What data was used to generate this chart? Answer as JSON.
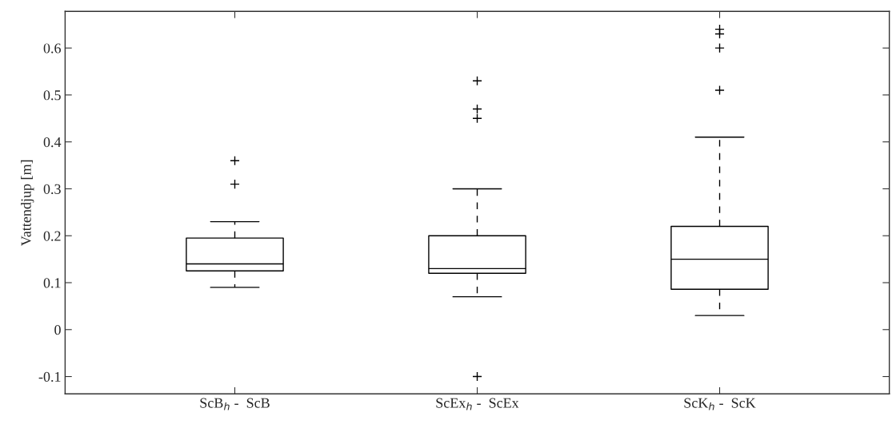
{
  "chart_data": {
    "type": "box",
    "ylabel": "Vattendjup [m]",
    "categories": [
      "ScB$_{h}$ -  ScB",
      "ScEx$_{h}$ -  ScEx",
      "ScK$_{h}$ -  ScK"
    ],
    "boxes": [
      {
        "low": 0.09,
        "q1": 0.125,
        "median": 0.14,
        "q3": 0.195,
        "high": 0.23,
        "outliers": [
          0.31,
          0.36
        ]
      },
      {
        "low": 0.07,
        "q1": 0.12,
        "median": 0.13,
        "q3": 0.2,
        "high": 0.3,
        "outliers": [
          0.45,
          0.47,
          0.53,
          -0.1
        ]
      },
      {
        "low": 0.03,
        "q1": 0.086,
        "median": 0.15,
        "q3": 0.22,
        "high": 0.41,
        "outliers": [
          0.51,
          0.6,
          0.63,
          0.64
        ]
      }
    ],
    "color": "#000000",
    "ylim": [
      -0.137,
      0.678
    ],
    "yticks": [
      -0.1,
      0,
      0.1,
      0.2,
      0.3,
      0.4,
      0.5,
      0.6
    ],
    "grid": false
  }
}
